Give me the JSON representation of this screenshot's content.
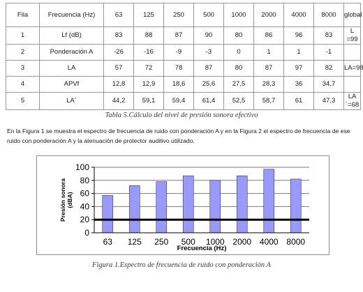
{
  "table": {
    "header": [
      "Fila",
      "Frecuencia (Hz)",
      "63",
      "125",
      "250",
      "500",
      "1000",
      "2000",
      "4000",
      "8000",
      "global"
    ],
    "rows": [
      [
        "1",
        "Lf (dB)",
        "83",
        "88",
        "87",
        "90",
        "80",
        "86",
        "96",
        "83",
        "L =99"
      ],
      [
        "2",
        "Ponderación A",
        "-26",
        "-16",
        "-9",
        "-3",
        "0",
        "1",
        "1",
        "-1",
        ""
      ],
      [
        "3",
        "LA",
        "57",
        "72",
        "78",
        "87",
        "80",
        "87",
        "97",
        "82",
        "LA=98"
      ],
      [
        "4",
        "APVf",
        "12,8",
        "12,9",
        "18,6",
        "25,6",
        "27,5",
        "28,3",
        "36",
        "34,7",
        ""
      ],
      [
        "5",
        "LA´",
        "44,2",
        "59,1",
        "59,4",
        "61,4",
        "52,5",
        "58,7",
        "61",
        "47,3",
        "LA´=68"
      ]
    ],
    "caption": "Tabla 5.Cálculo del nivel de presión sonora efectivo"
  },
  "paragraph": "En la Figura 1 se muestra el espectro de frecuencia de ruido con ponderación A  y en la Figura 2 el espectro de frecuencia de ese ruido con ponderación A y la atenuación de protector auditivo utilizado.",
  "figure_caption": "Figura 1.Espectro de frecuencia de ruido con ponderación A",
  "chart_data": {
    "type": "bar",
    "categories": [
      "63",
      "125",
      "250",
      "500",
      "1000",
      "2000",
      "4000",
      "8000"
    ],
    "values": [
      57,
      72,
      78,
      87,
      80,
      87,
      97,
      82
    ],
    "reference_line": 20,
    "xlabel": "Frecuencia (Hz)",
    "ylabel": "Presión sonora (dBA)",
    "ylim": [
      0,
      100
    ],
    "yticks": [
      0,
      20,
      40,
      60,
      80,
      100
    ],
    "grid": true,
    "bar_color": "#9999ff",
    "line_color": "#000000"
  }
}
